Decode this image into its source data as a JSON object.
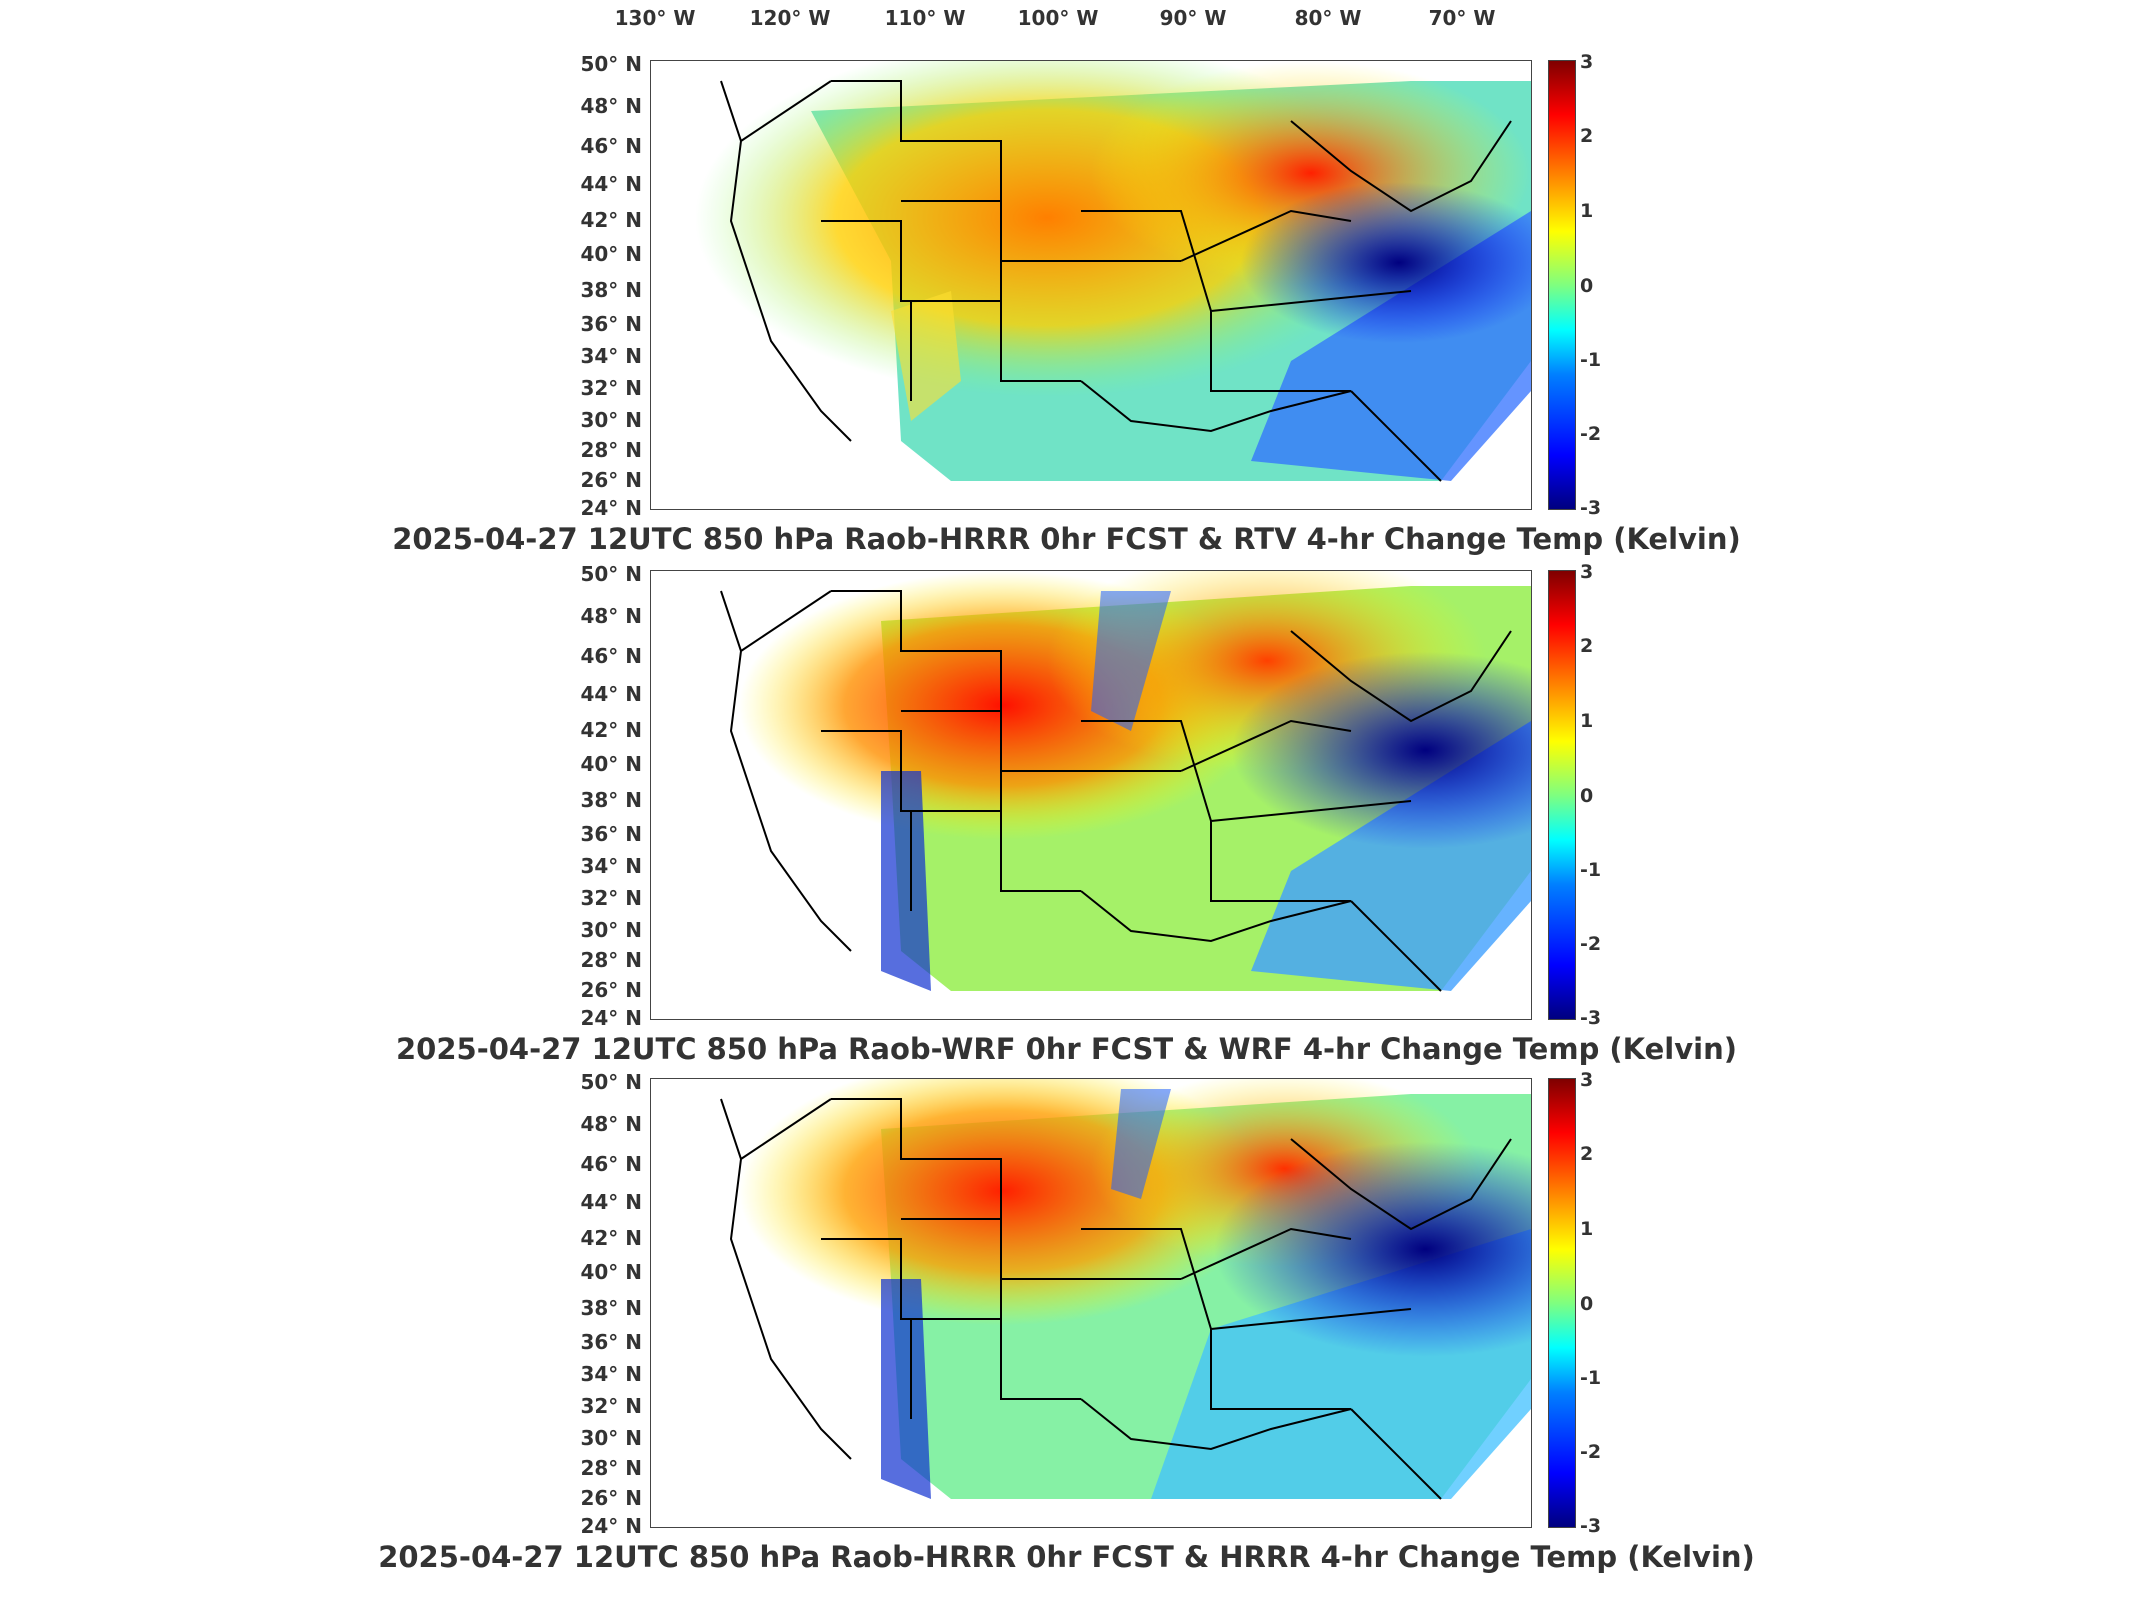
{
  "longitude_labels": [
    "130° W",
    "120° W",
    "110° W",
    "100° W",
    "90° W",
    "80° W",
    "70° W"
  ],
  "latitude_labels": [
    "50° N",
    "48° N",
    "46° N",
    "44° N",
    "42° N",
    "40° N",
    "38° N",
    "36° N",
    "34° N",
    "32° N",
    "30° N",
    "28° N",
    "26° N",
    "24° N"
  ],
  "colorbar_ticks": [
    "3",
    "2",
    "1",
    "0",
    "-1",
    "-2",
    "-3"
  ],
  "panels": [
    {
      "title": "2025-04-27 12UTC 850 hPa Raob-HRRR 0hr FCST & RTV 4-hr Change Temp (Kelvin)"
    },
    {
      "title": "2025-04-27 12UTC 850 hPa Raob-WRF 0hr FCST & WRF 4-hr Change Temp (Kelvin)"
    },
    {
      "title": "2025-04-27 12UTC 850 hPa Raob-HRRR 0hr FCST & HRRR 4-hr Change Temp (Kelvin)"
    }
  ],
  "colors": {
    "scale_min": "#00007f",
    "scale_blue": "#0000ff",
    "scale_cyan": "#00ffff",
    "scale_green": "#7fff7f",
    "scale_yellow": "#ffff00",
    "scale_orange": "#ff7f00",
    "scale_red": "#ff0000",
    "scale_max": "#7f0000"
  }
}
